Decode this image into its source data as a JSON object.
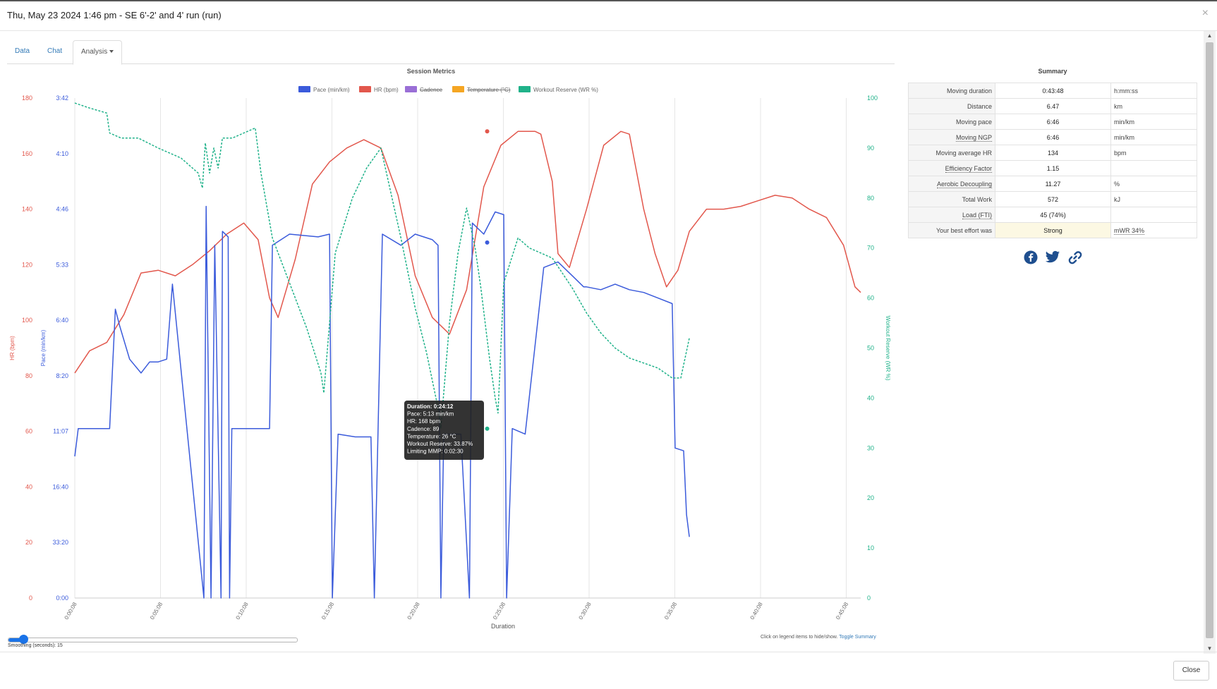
{
  "modal": {
    "title": "Thu, May 23 2024 1:46 pm - SE 6'-2' and 4' run (run)",
    "close_symbol": "×",
    "close_button": "Close"
  },
  "tabs": [
    {
      "label": "Data",
      "active": false
    },
    {
      "label": "Chat",
      "active": false
    },
    {
      "label": "Analysis",
      "active": true,
      "dropdown": true
    }
  ],
  "chart_data": {
    "type": "line",
    "title": "Session Metrics",
    "xlabel": "Duration",
    "x_ticks": [
      "0:00:08",
      "0:05:08",
      "0:10:08",
      "0:15:08",
      "0:20:08",
      "0:25:08",
      "0:30:08",
      "0:35:08",
      "0:40:08",
      "0:45:08"
    ],
    "x_range_seconds": [
      8,
      2760
    ],
    "axes": {
      "hr": {
        "label": "HR (bpm)",
        "color": "#e2574c",
        "range": [
          0,
          180
        ],
        "ticks": [
          "0",
          "20",
          "40",
          "60",
          "80",
          "100",
          "120",
          "140",
          "160",
          "180"
        ]
      },
      "pace": {
        "label": "Pace (min/km)",
        "color": "#3b5bdb",
        "ticks": [
          "0:00",
          "33:20",
          "16:40",
          "11:07",
          "8:20",
          "6:40",
          "5:33",
          "4:46",
          "4:10",
          "3:42"
        ]
      },
      "wr": {
        "label": "Workout Reserve (WR %)",
        "color": "#20b28a",
        "range": [
          0,
          100
        ],
        "ticks": [
          "0",
          "10",
          "20",
          "30",
          "40",
          "50",
          "60",
          "70",
          "80",
          "90",
          "100"
        ]
      }
    },
    "legend": [
      {
        "name": "Pace (min/km)",
        "color": "#3b5bdb",
        "hidden": false
      },
      {
        "name": "HR (bpm)",
        "color": "#e2574c",
        "hidden": false
      },
      {
        "name": "Cadence",
        "color": "#9a6fd6",
        "hidden": true
      },
      {
        "name": "Temperature (°C)",
        "color": "#f5a623",
        "hidden": true
      },
      {
        "name": "Workout Reserve (WR %)",
        "color": "#20b28a",
        "hidden": false
      }
    ],
    "series": [
      {
        "name": "HR (bpm)",
        "axis": "hr",
        "points": [
          [
            8,
            81
          ],
          [
            60,
            89
          ],
          [
            120,
            92
          ],
          [
            180,
            102
          ],
          [
            240,
            117
          ],
          [
            300,
            118
          ],
          [
            360,
            116
          ],
          [
            420,
            120
          ],
          [
            480,
            125
          ],
          [
            540,
            131
          ],
          [
            600,
            135
          ],
          [
            650,
            129
          ],
          [
            690,
            108
          ],
          [
            720,
            101
          ],
          [
            780,
            122
          ],
          [
            840,
            149
          ],
          [
            900,
            157
          ],
          [
            960,
            162
          ],
          [
            1020,
            165
          ],
          [
            1080,
            162
          ],
          [
            1140,
            145
          ],
          [
            1200,
            116
          ],
          [
            1260,
            101
          ],
          [
            1320,
            95
          ],
          [
            1380,
            111
          ],
          [
            1440,
            148
          ],
          [
            1500,
            163
          ],
          [
            1560,
            168
          ],
          [
            1620,
            168
          ],
          [
            1640,
            167
          ],
          [
            1680,
            150
          ],
          [
            1700,
            124
          ],
          [
            1740,
            119
          ],
          [
            1800,
            140
          ],
          [
            1860,
            163
          ],
          [
            1920,
            168
          ],
          [
            1950,
            167
          ],
          [
            2000,
            140
          ],
          [
            2040,
            124
          ],
          [
            2080,
            112
          ],
          [
            2120,
            118
          ],
          [
            2160,
            132
          ],
          [
            2220,
            140
          ],
          [
            2280,
            140
          ],
          [
            2340,
            141
          ],
          [
            2400,
            143
          ],
          [
            2460,
            145
          ],
          [
            2520,
            144
          ],
          [
            2580,
            140
          ],
          [
            2640,
            137
          ],
          [
            2700,
            127
          ],
          [
            2740,
            112
          ],
          [
            2760,
            110
          ]
        ]
      },
      {
        "name": "Pace (min/km)",
        "axis": "pace",
        "points": [
          [
            8,
            51
          ],
          [
            20,
            61
          ],
          [
            90,
            61
          ],
          [
            130,
            61
          ],
          [
            150,
            104
          ],
          [
            165,
            98
          ],
          [
            200,
            86
          ],
          [
            240,
            81
          ],
          [
            270,
            85
          ],
          [
            300,
            85
          ],
          [
            330,
            86
          ],
          [
            350,
            113
          ],
          [
            460,
            0
          ],
          [
            468,
            141
          ],
          [
            485,
            0
          ],
          [
            498,
            127
          ],
          [
            520,
            0
          ],
          [
            525,
            132
          ],
          [
            545,
            130
          ],
          [
            550,
            0
          ],
          [
            558,
            61
          ],
          [
            600,
            61
          ],
          [
            690,
            61
          ],
          [
            700,
            127
          ],
          [
            760,
            131
          ],
          [
            860,
            130
          ],
          [
            900,
            131
          ],
          [
            910,
            0
          ],
          [
            930,
            59
          ],
          [
            990,
            58
          ],
          [
            1045,
            58
          ],
          [
            1057,
            0
          ],
          [
            1085,
            131
          ],
          [
            1150,
            127
          ],
          [
            1200,
            131
          ],
          [
            1260,
            129
          ],
          [
            1280,
            127
          ],
          [
            1290,
            0
          ],
          [
            1300,
            59
          ],
          [
            1360,
            59
          ],
          [
            1390,
            0
          ],
          [
            1400,
            135
          ],
          [
            1440,
            131
          ],
          [
            1480,
            139
          ],
          [
            1510,
            138
          ],
          [
            1520,
            0
          ],
          [
            1540,
            61
          ],
          [
            1585,
            59
          ],
          [
            1650,
            119
          ],
          [
            1700,
            121
          ],
          [
            1750,
            116
          ],
          [
            1790,
            112
          ],
          [
            1800,
            112
          ],
          [
            1850,
            111
          ],
          [
            1900,
            113
          ],
          [
            1950,
            111
          ],
          [
            2000,
            110
          ],
          [
            2050,
            108
          ],
          [
            2100,
            106
          ],
          [
            2110,
            54
          ],
          [
            2140,
            53
          ],
          [
            2150,
            30
          ],
          [
            2160,
            22
          ]
        ]
      },
      {
        "name": "Workout Reserve (WR %)",
        "axis": "wr",
        "points": [
          [
            8,
            99
          ],
          [
            60,
            98
          ],
          [
            120,
            97
          ],
          [
            130,
            93
          ],
          [
            170,
            92
          ],
          [
            230,
            92
          ],
          [
            300,
            90
          ],
          [
            380,
            88
          ],
          [
            440,
            85
          ],
          [
            455,
            82
          ],
          [
            465,
            91
          ],
          [
            480,
            85
          ],
          [
            495,
            90
          ],
          [
            510,
            86
          ],
          [
            525,
            92
          ],
          [
            560,
            92
          ],
          [
            600,
            93
          ],
          [
            640,
            94
          ],
          [
            660,
            85
          ],
          [
            700,
            72
          ],
          [
            760,
            63
          ],
          [
            820,
            54
          ],
          [
            870,
            45
          ],
          [
            880,
            41
          ],
          [
            920,
            69
          ],
          [
            980,
            80
          ],
          [
            1030,
            86
          ],
          [
            1080,
            90
          ],
          [
            1150,
            72
          ],
          [
            1200,
            58
          ],
          [
            1240,
            49
          ],
          [
            1280,
            38
          ],
          [
            1290,
            34
          ],
          [
            1320,
            55
          ],
          [
            1350,
            69
          ],
          [
            1380,
            78
          ],
          [
            1410,
            70
          ],
          [
            1430,
            62
          ],
          [
            1460,
            48
          ],
          [
            1480,
            40
          ],
          [
            1490,
            37
          ],
          [
            1510,
            63
          ],
          [
            1560,
            72
          ],
          [
            1600,
            70
          ],
          [
            1680,
            68
          ],
          [
            1750,
            62
          ],
          [
            1800,
            57
          ],
          [
            1850,
            53
          ],
          [
            1900,
            50
          ],
          [
            1950,
            48
          ],
          [
            2000,
            47
          ],
          [
            2050,
            46
          ],
          [
            2100,
            44
          ],
          [
            2130,
            44
          ],
          [
            2160,
            52
          ]
        ]
      }
    ],
    "hover_markers": [
      {
        "series": "HR (bpm)",
        "x": 1452,
        "y": 168
      },
      {
        "series": "Pace (min/km)",
        "x": 1452,
        "y": 128
      },
      {
        "series": "Workout Reserve (WR %)",
        "x": 1452,
        "y": 33.87
      }
    ],
    "tooltip": {
      "lines": [
        "Duration: 0:24:12",
        "Pace: 5:13 min/km",
        "HR: 168 bpm",
        "Cadence: 89",
        "Temperature: 26 °C",
        "Workout Reserve: 33.87%",
        "Limiting MMP: 0:02:30"
      ]
    }
  },
  "summary": {
    "title": "Summary",
    "rows": [
      {
        "label": "Moving duration",
        "value": "0:43:48",
        "unit": "h:mm:ss"
      },
      {
        "label": "Distance",
        "value": "6.47",
        "unit": "km"
      },
      {
        "label": "Moving pace",
        "value": "6:46",
        "unit": "min/km"
      },
      {
        "label": "Moving NGP",
        "value": "6:46",
        "unit": "min/km"
      },
      {
        "label": "Moving average HR",
        "value": "134",
        "unit": "bpm"
      },
      {
        "label": "Efficiency Factor",
        "value": "1.15",
        "unit": ""
      },
      {
        "label": "Aerobic Decoupling",
        "value": "11.27",
        "unit": "%"
      },
      {
        "label": "Total Work",
        "value": "572",
        "unit": "kJ"
      },
      {
        "label": "Load (FTI)",
        "value": "45 (74%)",
        "unit": ""
      },
      {
        "label": "Your best effort was",
        "value": "Strong",
        "unit": "mWR 34%"
      }
    ]
  },
  "controls": {
    "smoothing_label": "Smoothing (seconds): 15",
    "smoothing_value": 15,
    "hint_text": "Click on legend items to hide/show.",
    "toggle_summary": "Toggle Summary"
  },
  "icons": [
    "facebook-icon",
    "twitter-icon",
    "link-icon"
  ]
}
